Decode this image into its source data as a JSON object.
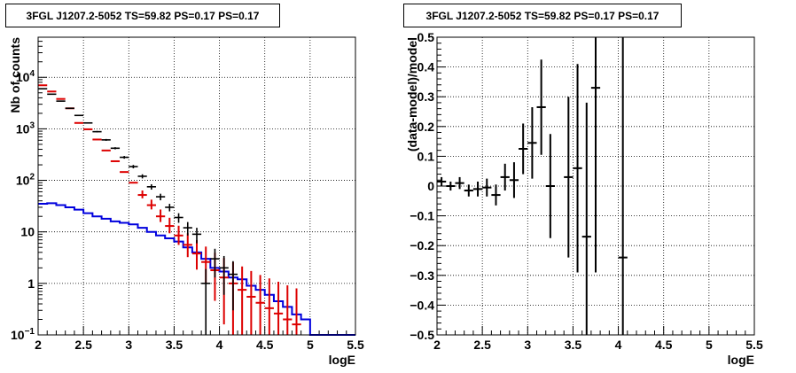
{
  "chart_data": [
    {
      "type": "scatter",
      "title": "3FGL J1207.2-5052 TS=59.82 PS=0.17 PS=0.17",
      "xlabel": "logE",
      "ylabel": "Nb of counts",
      "xlim": [
        2,
        5.5
      ],
      "ylim": [
        0.1,
        60000
      ],
      "yscale": "log",
      "grid": true,
      "x_tick_labels": [
        "2",
        "2.5",
        "3",
        "3.5",
        "4",
        "4.5",
        "5",
        "5.5"
      ],
      "y_tick_labels": [
        "10^-1",
        "1",
        "10",
        "10^2",
        "10^3",
        "10^4"
      ],
      "colors": {
        "data": "#000000",
        "model": "#dd0000",
        "source": "#0000dd"
      },
      "series": [
        {
          "role": "data",
          "points": [
            {
              "x": 2.05,
              "y": 6000,
              "err": 80
            },
            {
              "x": 2.15,
              "y": 4700,
              "err": 70
            },
            {
              "x": 2.25,
              "y": 3450,
              "err": 60
            },
            {
              "x": 2.35,
              "y": 2500,
              "err": 50
            },
            {
              "x": 2.45,
              "y": 1820,
              "err": 43
            },
            {
              "x": 2.55,
              "y": 1300,
              "err": 36
            },
            {
              "x": 2.65,
              "y": 880,
              "err": 30
            },
            {
              "x": 2.75,
              "y": 610,
              "err": 25
            },
            {
              "x": 2.85,
              "y": 420,
              "err": 20
            },
            {
              "x": 2.95,
              "y": 280,
              "err": 17
            },
            {
              "x": 3.05,
              "y": 185,
              "err": 14
            },
            {
              "x": 3.15,
              "y": 120,
              "err": 11
            },
            {
              "x": 3.25,
              "y": 75,
              "err": 9
            },
            {
              "x": 3.35,
              "y": 48,
              "err": 7
            },
            {
              "x": 3.45,
              "y": 30,
              "err": 5
            },
            {
              "x": 3.55,
              "y": 19,
              "err": 4
            },
            {
              "x": 3.65,
              "y": 12,
              "err": 3.5
            },
            {
              "x": 3.75,
              "y": 9,
              "err": 3
            },
            {
              "x": 3.85,
              "y": 1,
              "err": 0.9
            },
            {
              "x": 3.95,
              "y": 3,
              "err": 1.7
            },
            {
              "x": 4.05,
              "y": 2,
              "err": 1.4
            },
            {
              "x": 4.15,
              "y": 1.5,
              "err": 1.2
            }
          ]
        },
        {
          "role": "model",
          "points": [
            {
              "x": 2.05,
              "y": 7000
            },
            {
              "x": 2.15,
              "y": 5300
            },
            {
              "x": 2.25,
              "y": 3800
            },
            {
              "x": 2.35,
              "y": 2500
            },
            {
              "x": 2.45,
              "y": 1300
            },
            {
              "x": 2.55,
              "y": 980
            },
            {
              "x": 2.65,
              "y": 620
            },
            {
              "x": 2.75,
              "y": 380
            },
            {
              "x": 2.85,
              "y": 235
            },
            {
              "x": 2.95,
              "y": 145
            },
            {
              "x": 3.05,
              "y": 90
            },
            {
              "x": 3.15,
              "y": 52
            },
            {
              "x": 3.25,
              "y": 33
            },
            {
              "x": 3.35,
              "y": 20
            },
            {
              "x": 3.45,
              "y": 13
            },
            {
              "x": 3.55,
              "y": 8.5
            },
            {
              "x": 3.65,
              "y": 5.6
            },
            {
              "x": 3.75,
              "y": 3.8
            },
            {
              "x": 3.85,
              "y": 2.6
            },
            {
              "x": 3.95,
              "y": 1.8
            },
            {
              "x": 4.05,
              "y": 1.3
            },
            {
              "x": 4.15,
              "y": 1.0
            },
            {
              "x": 4.25,
              "y": 0.75
            },
            {
              "x": 4.35,
              "y": 0.55
            },
            {
              "x": 4.45,
              "y": 0.42
            },
            {
              "x": 4.55,
              "y": 0.33
            },
            {
              "x": 4.65,
              "y": 0.26
            },
            {
              "x": 4.75,
              "y": 0.2
            },
            {
              "x": 4.85,
              "y": 0.16
            }
          ]
        },
        {
          "role": "source",
          "bin_edges": [
            2.0,
            2.1,
            2.2,
            2.3,
            2.4,
            2.5,
            2.6,
            2.7,
            2.8,
            2.9,
            3.0,
            3.1,
            3.2,
            3.3,
            3.4,
            3.5,
            3.6,
            3.7,
            3.8,
            3.9,
            4.0,
            4.1,
            4.2,
            4.3,
            4.4,
            4.5,
            4.6,
            4.7,
            4.8,
            4.9,
            5.0,
            5.1,
            5.2,
            5.3,
            5.4,
            5.5
          ],
          "values": [
            35,
            36,
            33,
            30,
            27,
            23,
            20,
            18,
            16,
            15,
            14,
            12,
            10,
            8.5,
            7.5,
            6.5,
            5,
            4,
            3,
            2,
            1.7,
            1.3,
            1.2,
            0.9,
            0.75,
            0.6,
            0.45,
            0.35,
            0.25,
            0.2,
            0.1,
            0.1,
            0.1,
            0.1,
            0.1
          ]
        }
      ]
    },
    {
      "type": "scatter",
      "title": "3FGL J1207.2-5052 TS=59.82 PS=0.17 PS=0.17",
      "xlabel": "logE",
      "ylabel": "(data-model)/model",
      "xlim": [
        2,
        5.5
      ],
      "ylim": [
        -0.5,
        0.5
      ],
      "grid": true,
      "x_tick_labels": [
        "2",
        "2.5",
        "3",
        "3.5",
        "4",
        "4.5",
        "5",
        "5.5"
      ],
      "y_tick_labels": [
        "-0.5",
        "-0.4",
        "-0.3",
        "-0.2",
        "-0.1",
        "0",
        "0.1",
        "0.2",
        "0.3",
        "0.4",
        "0.5"
      ],
      "colors": {
        "residual": "#000000"
      },
      "series": [
        {
          "role": "residual",
          "points": [
            {
              "x": 2.05,
              "y": 0.015,
              "err": 0.015
            },
            {
              "x": 2.15,
              "y": 0.0,
              "err": 0.015
            },
            {
              "x": 2.25,
              "y": 0.01,
              "err": 0.02
            },
            {
              "x": 2.35,
              "y": -0.015,
              "err": 0.02
            },
            {
              "x": 2.45,
              "y": -0.01,
              "err": 0.025
            },
            {
              "x": 2.55,
              "y": -0.005,
              "err": 0.03
            },
            {
              "x": 2.65,
              "y": -0.03,
              "err": 0.035
            },
            {
              "x": 2.75,
              "y": 0.03,
              "err": 0.045
            },
            {
              "x": 2.85,
              "y": 0.02,
              "err": 0.06
            },
            {
              "x": 2.95,
              "y": 0.125,
              "err": 0.085
            },
            {
              "x": 3.05,
              "y": 0.145,
              "err": 0.12
            },
            {
              "x": 3.15,
              "y": 0.265,
              "err": 0.16
            },
            {
              "x": 3.25,
              "y": 0.0,
              "err": 0.175
            },
            {
              "x": 3.45,
              "y": 0.03,
              "err": 0.27
            },
            {
              "x": 3.55,
              "y": 0.06,
              "err": 0.35
            },
            {
              "x": 3.65,
              "y": -0.17,
              "err": 0.45
            },
            {
              "x": 3.75,
              "y": 0.33,
              "err": 0.62
            },
            {
              "x": 4.05,
              "y": -0.24,
              "err": 0.9
            }
          ]
        }
      ]
    }
  ]
}
